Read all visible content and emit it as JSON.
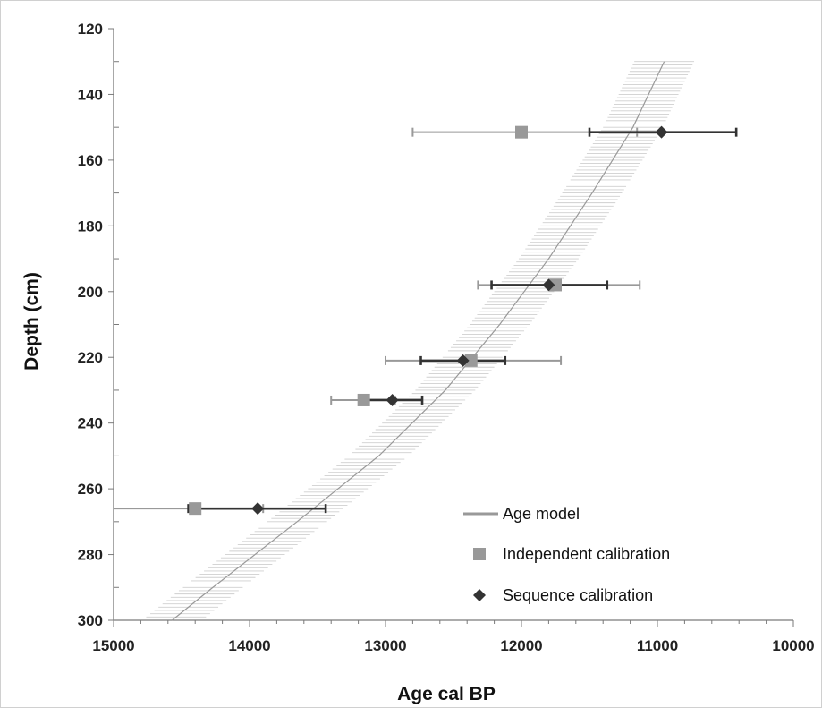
{
  "chart_data": {
    "type": "scatter",
    "title": "",
    "xlabel": "Age cal BP",
    "ylabel": "Depth (cm)",
    "xlim": [
      15000,
      10000
    ],
    "x_reversed": true,
    "ylim": [
      120,
      300
    ],
    "y_reversed": true,
    "x_ticks": [
      "15000",
      "14000",
      "13000",
      "12000",
      "11000",
      "10000"
    ],
    "y_ticks": [
      "120",
      "140",
      "160",
      "180",
      "200",
      "220",
      "240",
      "260",
      "280",
      "300"
    ],
    "grid": false,
    "legend_position": "bottom-right",
    "age_model": {
      "name": "Age model",
      "color": "#999999",
      "band_color": "#cfcfcf",
      "depth": [
        130,
        150,
        170,
        190,
        210,
        230,
        250,
        270,
        290,
        300
      ],
      "age": [
        10950,
        11180,
        11480,
        11800,
        12160,
        12560,
        13050,
        13650,
        14270,
        14570
      ],
      "band_halfwidth": 220
    },
    "series": [
      {
        "name": "Independent calibration",
        "marker": "square",
        "color": "#999999",
        "points": [
          {
            "depth": 151.5,
            "age": 12000,
            "err_old": 12800,
            "err_young": 11150
          },
          {
            "depth": 198,
            "age": 11750,
            "err_old": 12320,
            "err_young": 11130
          },
          {
            "depth": 221,
            "age": 12370,
            "err_old": 13000,
            "err_young": 11710
          },
          {
            "depth": 233,
            "age": 13160,
            "err_old": 13400,
            "err_young": 12930
          },
          {
            "depth": 266,
            "age": 14400,
            "err_old": 15000,
            "err_young": 13900
          }
        ]
      },
      {
        "name": "Sequence calibration",
        "marker": "diamond",
        "color": "#333333",
        "points": [
          {
            "depth": 151.5,
            "age": 10970,
            "err_old": 11500,
            "err_young": 10420
          },
          {
            "depth": 198,
            "age": 11800,
            "err_old": 12220,
            "err_young": 11370
          },
          {
            "depth": 221,
            "age": 12430,
            "err_old": 12740,
            "err_young": 12120
          },
          {
            "depth": 233,
            "age": 12950,
            "err_old": 13130,
            "err_young": 12730
          },
          {
            "depth": 266,
            "age": 13940,
            "err_old": 14450,
            "err_young": 13440
          }
        ]
      }
    ]
  }
}
